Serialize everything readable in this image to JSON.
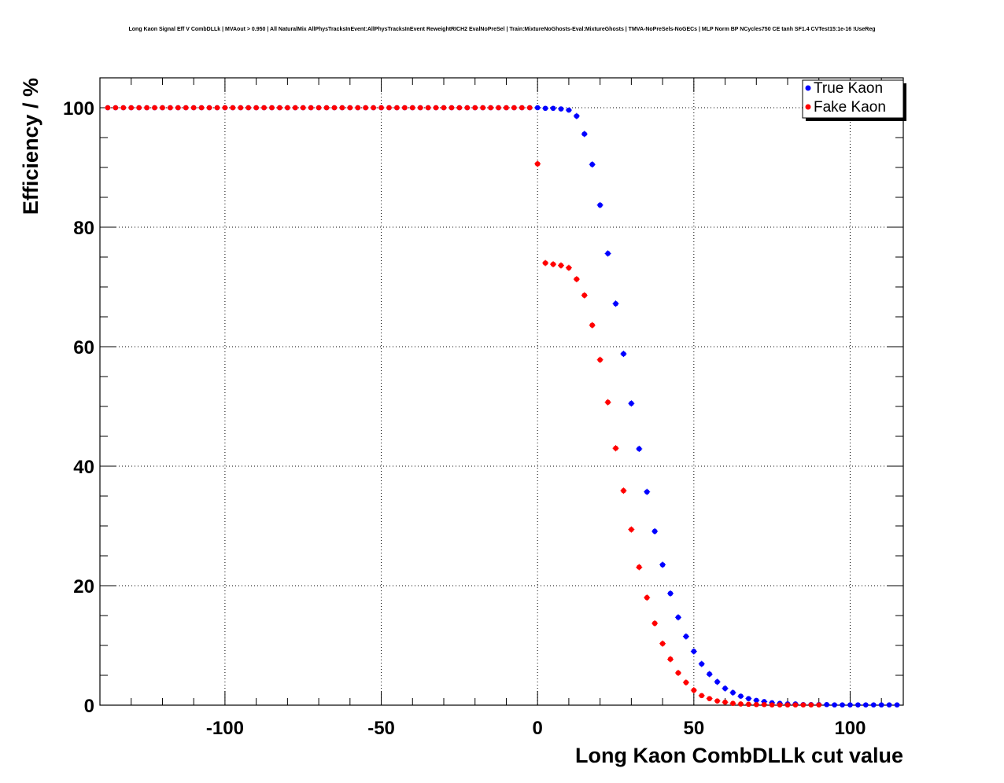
{
  "chart_data": {
    "type": "scatter",
    "title": "Long Kaon Signal Eff V CombDLLk | MVAout > 0.950 | All NaturalMix AllPhysTracksInEvent:AllPhysTracksInEvent ReweightRICH2 EvalNoPreSel | Train:MixtureNoGhosts-Eval:MixtureGhosts | TMVA-NoPreSels-NoGECs | MLP Norm BP NCycles750 CE tanh SF1.4 CVTest15:1e-16 !UseReg",
    "xlabel": "Long Kaon CombDLLk cut value",
    "ylabel": "Efficiency / %",
    "xlim": [
      -140,
      117
    ],
    "ylim": [
      0,
      105
    ],
    "x_ticks": [
      -100,
      -50,
      0,
      50,
      100
    ],
    "y_ticks": [
      0,
      20,
      40,
      60,
      80,
      100
    ],
    "grid": true,
    "legend_position": "top-right",
    "x": [
      -137.5,
      -135,
      -132.5,
      -130,
      -127.5,
      -125,
      -122.5,
      -120,
      -117.5,
      -115,
      -112.5,
      -110,
      -107.5,
      -105,
      -102.5,
      -100,
      -97.5,
      -95,
      -92.5,
      -90,
      -87.5,
      -85,
      -82.5,
      -80,
      -77.5,
      -75,
      -72.5,
      -70,
      -67.5,
      -65,
      -62.5,
      -60,
      -57.5,
      -55,
      -52.5,
      -50,
      -47.5,
      -45,
      -42.5,
      -40,
      -37.5,
      -35,
      -32.5,
      -30,
      -27.5,
      -25,
      -22.5,
      -20,
      -17.5,
      -15,
      -12.5,
      -10,
      -7.5,
      -5,
      -2.5,
      0,
      2.5,
      5,
      7.5,
      10,
      12.5,
      15,
      17.5,
      20,
      22.5,
      25,
      27.5,
      30,
      32.5,
      35,
      37.5,
      40,
      42.5,
      45,
      47.5,
      50,
      52.5,
      55,
      57.5,
      60,
      62.5,
      65,
      67.5,
      70,
      72.5,
      75,
      77.5,
      80,
      82.5,
      85,
      87.5,
      90,
      92.5,
      95,
      97.5,
      100,
      102.5,
      105,
      107.5,
      110,
      112.5,
      115
    ],
    "series": [
      {
        "name": "True Kaon",
        "color": "#0000ff",
        "values": [
          100,
          100,
          100,
          100,
          100,
          100,
          100,
          100,
          100,
          100,
          100,
          100,
          100,
          100,
          100,
          100,
          100,
          100,
          100,
          100,
          100,
          100,
          100,
          100,
          100,
          100,
          100,
          100,
          100,
          100,
          100,
          100,
          100,
          100,
          100,
          100,
          100,
          100,
          100,
          100,
          100,
          100,
          100,
          100,
          100,
          100,
          100,
          100,
          100,
          100,
          100,
          100,
          100,
          100,
          100,
          100,
          99.9,
          99.9,
          99.8,
          99.6,
          98.6,
          95.6,
          90.5,
          83.7,
          75.6,
          67.2,
          58.8,
          50.5,
          42.9,
          35.7,
          29.1,
          23.5,
          18.7,
          14.7,
          11.5,
          9,
          6.9,
          5.2,
          3.9,
          2.8,
          2.1,
          1.5,
          1.1,
          0.8,
          0.6,
          0.4,
          0.3,
          0.2,
          0.2,
          0.1,
          0.1,
          0.1,
          0.1,
          0.05,
          0.05,
          0.05,
          0.05,
          0.05,
          0.05,
          0.05,
          0.05,
          0.05
        ]
      },
      {
        "name": "Fake Kaon",
        "color": "#ff0000",
        "values": [
          100,
          100,
          100,
          100,
          100,
          100,
          100,
          100,
          100,
          100,
          100,
          100,
          100,
          100,
          100,
          100,
          100,
          100,
          100,
          100,
          100,
          100,
          100,
          100,
          100,
          100,
          100,
          100,
          100,
          100,
          100,
          100,
          100,
          100,
          100,
          100,
          100,
          100,
          100,
          100,
          100,
          100,
          100,
          100,
          100,
          100,
          100,
          100,
          100,
          100,
          100,
          100,
          100,
          100,
          100,
          90.6,
          74,
          73.8,
          73.6,
          73.2,
          71.3,
          68.6,
          63.6,
          57.8,
          50.7,
          43,
          35.9,
          29.4,
          23.1,
          18,
          13.7,
          10.3,
          7.7,
          5.4,
          3.8,
          2.5,
          1.6,
          1.1,
          0.7,
          0.5,
          0.3,
          0.2,
          0.15,
          0.1,
          0.1,
          0.05,
          0.05,
          0.05,
          0.05,
          0.05,
          0.05,
          0.05,
          null,
          null,
          null,
          null,
          null,
          null,
          null,
          null,
          null
        ]
      }
    ]
  }
}
